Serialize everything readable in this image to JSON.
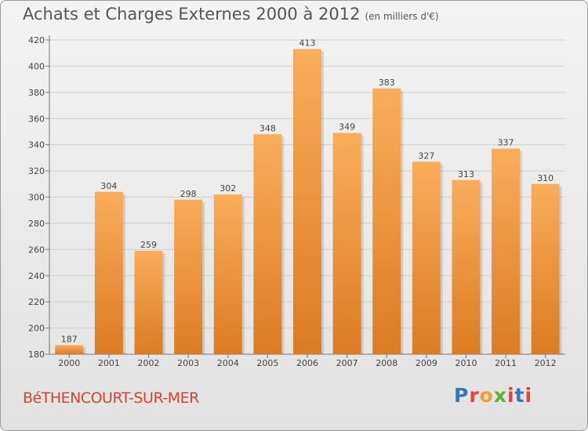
{
  "title": "Achats et Charges Externes 2000 à 2012",
  "unit": "(en milliers d'€)",
  "commune": "BéTHENCOURT-SUR-MER",
  "logo": {
    "text": "Proxiti",
    "colors": [
      "#2e7bc4",
      "#e8423a",
      "#f2a023",
      "#5cb030",
      "#e8423a",
      "#2e7bc4",
      "#e8423a"
    ]
  },
  "colors": {
    "bar_light": "#f9ad5a",
    "bar_dark": "#dc7b22",
    "grid": "#cfcfcf",
    "text": "#444444"
  },
  "chart_data": {
    "type": "bar",
    "title": "Achats et Charges Externes 2000 à 2012",
    "categories": [
      "2000",
      "2001",
      "2002",
      "2003",
      "2004",
      "2005",
      "2006",
      "2007",
      "2008",
      "2009",
      "2010",
      "2011",
      "2012"
    ],
    "values": [
      187,
      304,
      259,
      298,
      302,
      348,
      413,
      349,
      383,
      327,
      313,
      337,
      310
    ],
    "ylim": [
      180,
      420
    ],
    "yticks": [
      180,
      200,
      220,
      240,
      260,
      280,
      300,
      320,
      340,
      360,
      380,
      400,
      420
    ],
    "grid": true,
    "xlabel": "",
    "ylabel": ""
  }
}
